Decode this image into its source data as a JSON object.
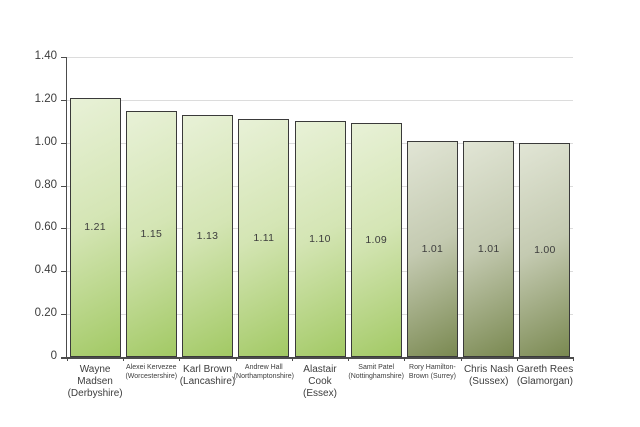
{
  "chart_data": {
    "type": "bar",
    "title": "",
    "xlabel": "",
    "ylabel": "",
    "ylim": [
      0,
      1.4
    ],
    "ytick_values": [
      0,
      0.2,
      0.4,
      0.6,
      0.8,
      1.0,
      1.2,
      1.4
    ],
    "ytick_labels": [
      "0",
      "0.20",
      "0.40",
      "0.60",
      "0.80",
      "1.00",
      "1.20",
      "1.40"
    ],
    "grid": true,
    "legend": false,
    "categories": [
      "Wayne Madsen (Derbyshire)",
      "Alexei Kervezee (Worcestershire)",
      "Karl Brown (Lancashire)",
      "Andrew Hall (Northamptonshire)",
      "Alastair Cook (Essex)",
      "Samit Patel (Nottinghamshire)",
      "Rory Hamilton-Brown (Surrey)",
      "Chris Nash (Sussex)",
      "Gareth Rees (Glamorgan)"
    ],
    "values": [
      1.21,
      1.15,
      1.13,
      1.11,
      1.1,
      1.09,
      1.01,
      1.01,
      1.0
    ],
    "bars": [
      {
        "label": "Wayne Madsen (Derbyshire)",
        "value": 1.21,
        "display": "1.21",
        "color_group": "green",
        "label_size": "large"
      },
      {
        "label": "Alexei Kervezee (Worcestershire)",
        "value": 1.15,
        "display": "1.15",
        "color_group": "green",
        "label_size": "small"
      },
      {
        "label": "Karl Brown (Lancashire)",
        "value": 1.13,
        "display": "1.13",
        "color_group": "green",
        "label_size": "large"
      },
      {
        "label": "Andrew Hall (Northamptonshire)",
        "value": 1.11,
        "display": "1.11",
        "color_group": "green",
        "label_size": "small"
      },
      {
        "label": "Alastair Cook (Essex)",
        "value": 1.1,
        "display": "1.10",
        "color_group": "green",
        "label_size": "large"
      },
      {
        "label": "Samit Patel (Nottinghamshire)",
        "value": 1.09,
        "display": "1.09",
        "color_group": "green",
        "label_size": "small"
      },
      {
        "label": "Rory Hamilton-Brown (Surrey)",
        "value": 1.01,
        "display": "1.01",
        "color_group": "gray",
        "label_size": "small"
      },
      {
        "label": "Chris Nash (Sussex)",
        "value": 1.01,
        "display": "1.01",
        "color_group": "gray",
        "label_size": "large"
      },
      {
        "label": "Gareth Rees (Glamorgan)",
        "value": 1.0,
        "display": "1.00",
        "color_group": "gray",
        "label_size": "large"
      }
    ],
    "colors": {
      "bar_green_top": "#e8f1d7",
      "bar_green_mid": "#d4e5b4",
      "bar_green_bottom": "#a2c964",
      "bar_gray_top": "#e1e5d5",
      "bar_gray_mid": "#c4cab1",
      "bar_gray_bottom": "#7a8951",
      "bar_border": "#3a3a3a",
      "gridline": "#dcdcdc",
      "axis": "#4c4c4c",
      "text": "#3d3d3d"
    }
  }
}
